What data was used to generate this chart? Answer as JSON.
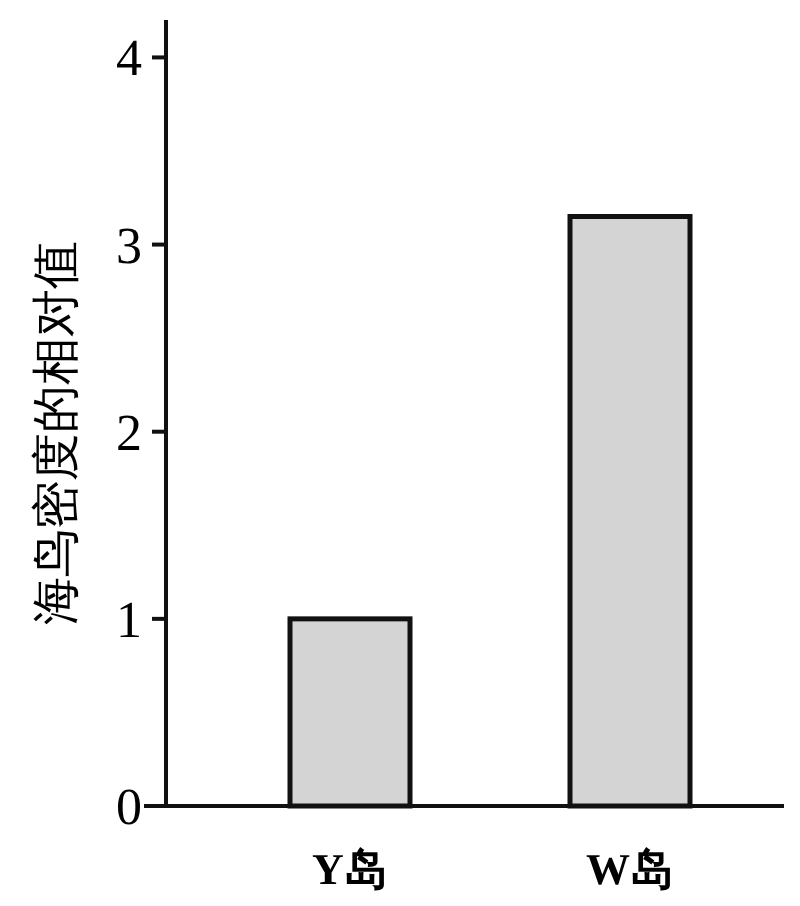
{
  "chart_data": {
    "type": "bar",
    "ylabel": "海鸟密度的相对值",
    "categories": [
      "Y岛",
      "W岛"
    ],
    "values": [
      1.0,
      3.15
    ],
    "color": "#d4d4d4",
    "ylim": [
      0,
      4.2
    ],
    "yticks": [
      0,
      1,
      2,
      3,
      4
    ],
    "grid": false
  }
}
